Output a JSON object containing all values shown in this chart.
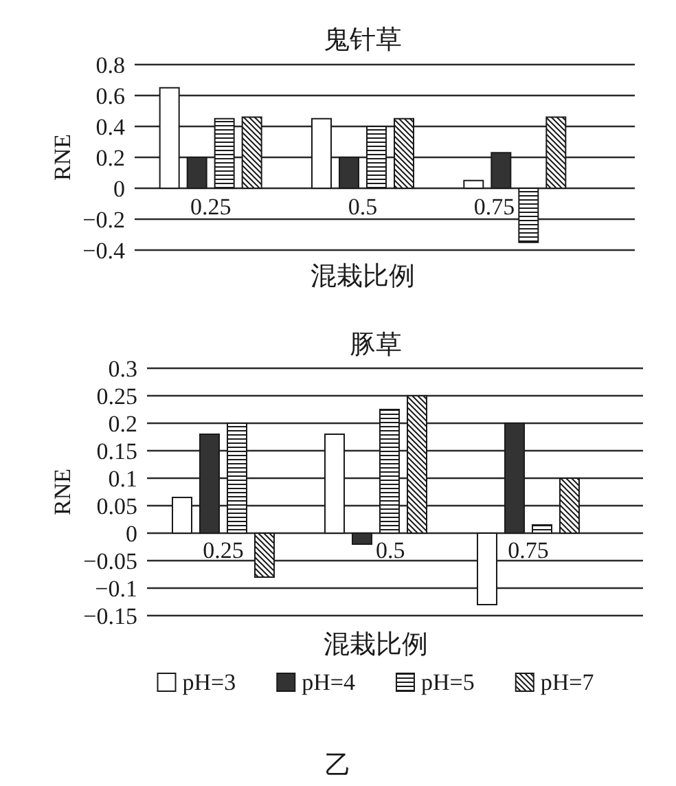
{
  "chart_data": [
    {
      "type": "bar",
      "title": "鬼针草",
      "xlabel": "混栽比例",
      "ylabel": "RNE",
      "categories": [
        "0.25",
        "0.5",
        "0.75"
      ],
      "series": [
        {
          "color": "#ffffff",
          "values": [
            0.65,
            0.45,
            0.05
          ]
        },
        {
          "color": "#333333",
          "values": [
            0.2,
            0.2,
            0.23
          ]
        },
        {
          "color": "#1a1a1a",
          "values": [
            0.45,
            0.4,
            -0.35
          ]
        },
        {
          "color": "#1a1a1a",
          "values": [
            0.46,
            0.45,
            0.46
          ]
        }
      ],
      "ylim": [
        -0.4,
        0.8
      ],
      "yticks": [
        -0.4,
        -0.2,
        0,
        0.2,
        0.4,
        0.6,
        0.8
      ],
      "grid": "y"
    },
    {
      "type": "bar",
      "title": "豚草",
      "xlabel": "混栽比例",
      "ylabel": "RNE",
      "categories": [
        "0.25",
        "0.5",
        "0.75"
      ],
      "series": [
        {
          "name": "pH=3",
          "color": "#ffffff",
          "values": [
            0.065,
            0.18,
            -0.13
          ]
        },
        {
          "name": "pH=4",
          "color": "#333333",
          "values": [
            0.18,
            -0.02,
            0.2
          ]
        },
        {
          "name": "pH=5",
          "color": "#1a1a1a",
          "values": [
            0.2,
            0.225,
            0.015
          ]
        },
        {
          "name": "pH=7",
          "color": "#1a1a1a",
          "values": [
            -0.08,
            0.25,
            0.1
          ]
        }
      ],
      "ylim": [
        -0.15,
        0.3
      ],
      "yticks": [
        -0.15,
        -0.1,
        -0.05,
        0,
        0.05,
        0.1,
        0.15,
        0.2,
        0.25,
        0.3
      ],
      "grid": "y",
      "legend": "bottom",
      "annotations": [
        "乙"
      ]
    }
  ]
}
